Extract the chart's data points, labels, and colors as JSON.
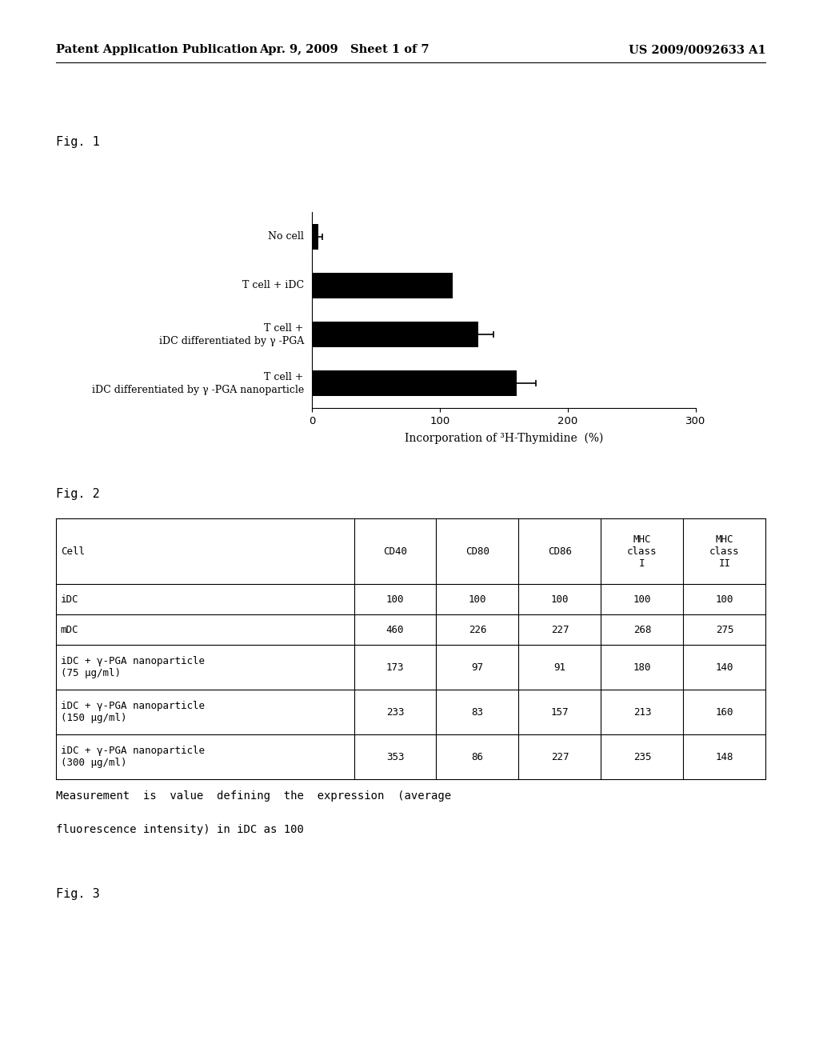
{
  "header_left": "Patent Application Publication",
  "header_mid": "Apr. 9, 2009   Sheet 1 of 7",
  "header_right": "US 2009/0092633 A1",
  "fig1_label": "Fig. 1",
  "bar_labels": [
    "No cell",
    "T cell + iDC",
    "T cell +\niDC differentiated by γ -PGA",
    "T cell +\niDC differentiated by γ -PGA nanoparticle"
  ],
  "bar_values": [
    5,
    110,
    130,
    160
  ],
  "bar_errors": [
    3,
    0,
    12,
    15
  ],
  "bar_color": "#000000",
  "xlabel": "Incorporation of ³H-Thymidine  (%)",
  "xlim": [
    0,
    300
  ],
  "xticks": [
    0,
    100,
    200,
    300
  ],
  "fig2_label": "Fig. 2",
  "fig3_label": "Fig. 3",
  "table_col_headers": [
    "Cell",
    "CD40",
    "CD80",
    "CD86",
    "MHC\nclass\nI",
    "MHC\nclass\nII"
  ],
  "table_rows": [
    [
      "iDC",
      "100",
      "100",
      "100",
      "100",
      "100"
    ],
    [
      "mDC",
      "460",
      "226",
      "227",
      "268",
      "275"
    ],
    [
      "iDC + γ-PGA nanoparticle\n(75 μg/ml)",
      "173",
      "97",
      "91",
      "180",
      "140"
    ],
    [
      "iDC + γ-PGA nanoparticle\n(150 μg/ml)",
      "233",
      "83",
      "157",
      "213",
      "160"
    ],
    [
      "iDC + γ-PGA nanoparticle\n(300 μg/ml)",
      "353",
      "86",
      "227",
      "235",
      "148"
    ]
  ],
  "caption_line1": "Measurement  is  value  defining  the  expression  (average",
  "caption_line2": "fluorescence intensity) in iDC as 100",
  "bg_color": "#ffffff",
  "text_color": "#000000"
}
